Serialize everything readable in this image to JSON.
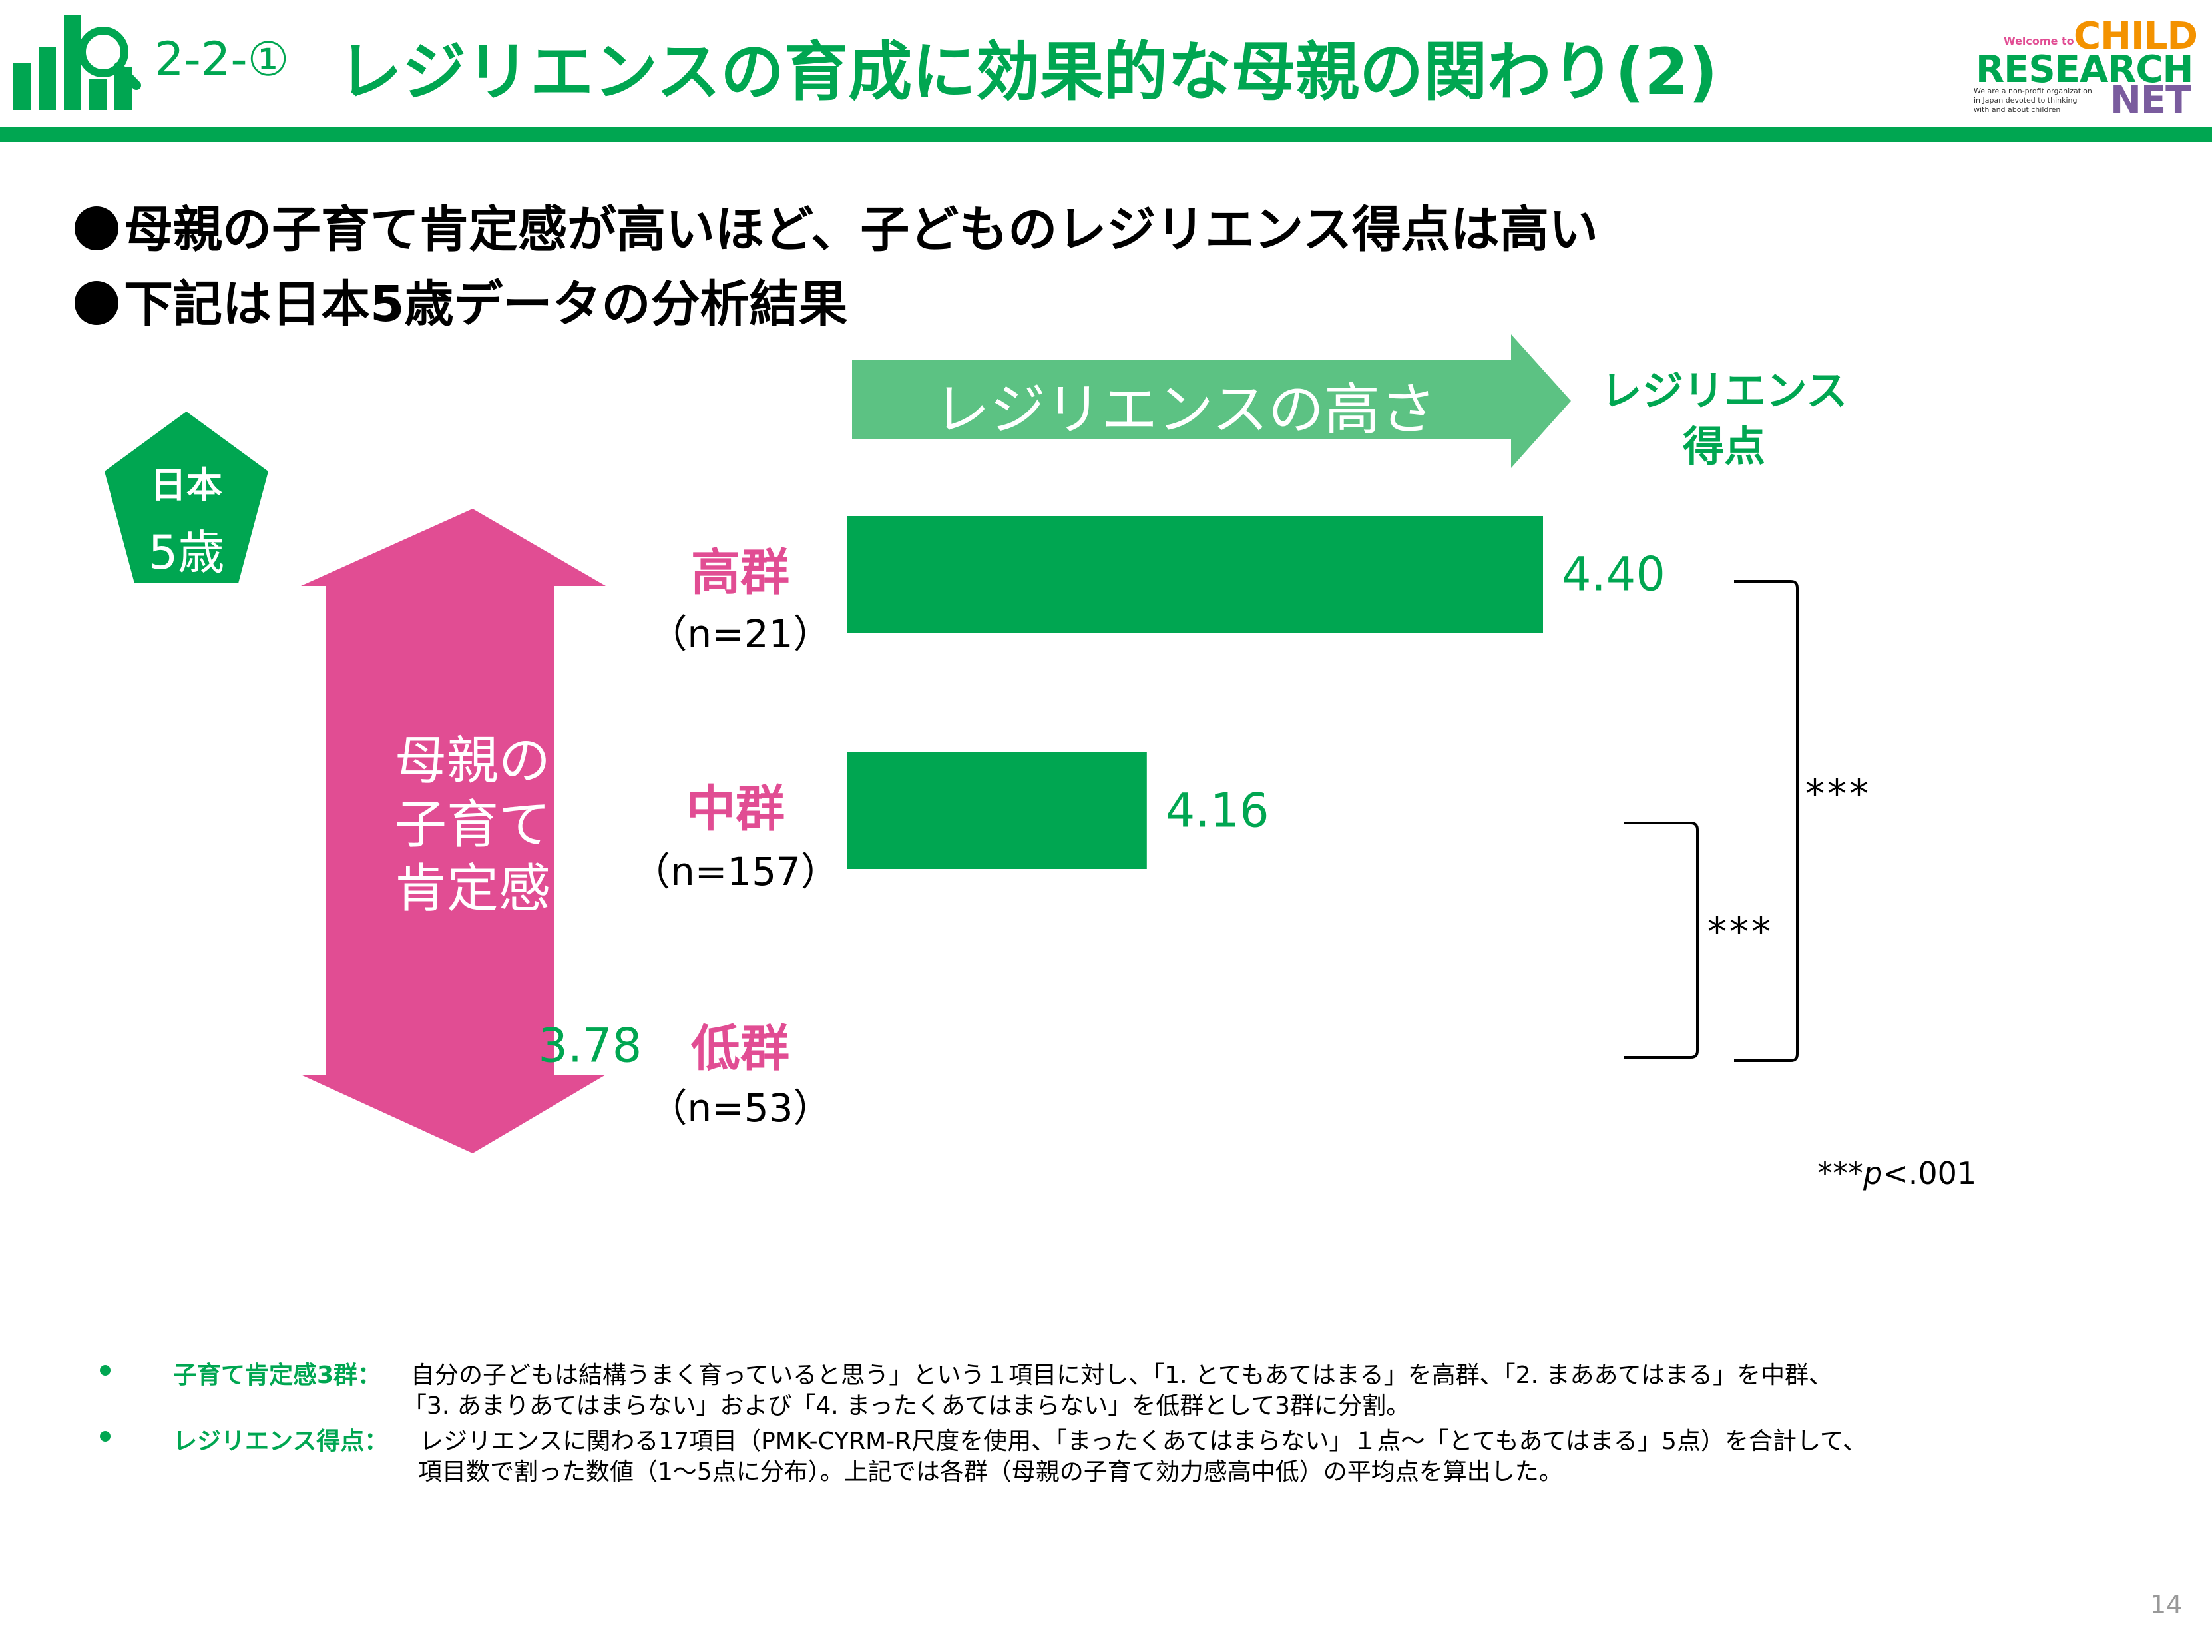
{
  "header": {
    "number": "2-2-①",
    "title": "レジリエンスの育成に効果的な母親の関わり(2)",
    "logo": {
      "small": "Welcome to",
      "child": "CHILD",
      "research": "RESEARCH",
      "net": "NET",
      "tagline": "We are a non-profit organization in Japan devoted to thinking with and about children"
    }
  },
  "bullets": [
    "母親の子育て肯定感が高いほど、子どものレジリエンス得点は高い",
    "下記は日本5歳データの分析結果"
  ],
  "badge": {
    "country": "日本",
    "age": "5歳"
  },
  "arrow_label": "レジリエンスの高さ",
  "score_heading": [
    "レジリエンス",
    "得点"
  ],
  "vertical_label": [
    "母親の",
    "子育て",
    "肯定感"
  ],
  "colors": {
    "green": "#00a651",
    "light_green": "#5cc283",
    "pink": "#e14d93"
  },
  "chart_data": {
    "type": "bar",
    "orientation": "horizontal",
    "categories": [
      "高群",
      "中群",
      "低群"
    ],
    "n_labels": [
      "（n=21）",
      "（n=157）",
      "（n=53）"
    ],
    "values": [
      4.4,
      4.16,
      3.78
    ],
    "value_labels": [
      "4.40",
      "4.16",
      "3.78"
    ],
    "bar_color": "#00a651",
    "significance": [
      {
        "between": [
          "高群",
          "低群"
        ],
        "label": "***"
      },
      {
        "between": [
          "中群",
          "低群"
        ],
        "label": "***"
      }
    ]
  },
  "footnote_sig": {
    "stars": "***",
    "p": "p",
    "rest": "<.001"
  },
  "notes": [
    {
      "term": "子育て肯定感3群：",
      "lines": [
        "自分の子どもは結構うまく育っていると思う」という１項目に対し、「1. とてもあてはまる」を高群、「2. まああてはまる」を中群、",
        "「3. あまりあてはまらない」および「4. まったくあてはまらない」を低群として3群に分割。"
      ]
    },
    {
      "term": "レジリエンス得点：",
      "lines": [
        "レジリエンスに関わる17項目（PMK-CYRM-R尺度を使用、「まったくあてはまらない」１点〜「とてもあてはまる」5点）を合計して、",
        "項目数で割った数値（1〜5点に分布）。上記では各群（母親の子育て効力感高中低）の平均点を算出した。"
      ]
    }
  ],
  "page_number": "14"
}
